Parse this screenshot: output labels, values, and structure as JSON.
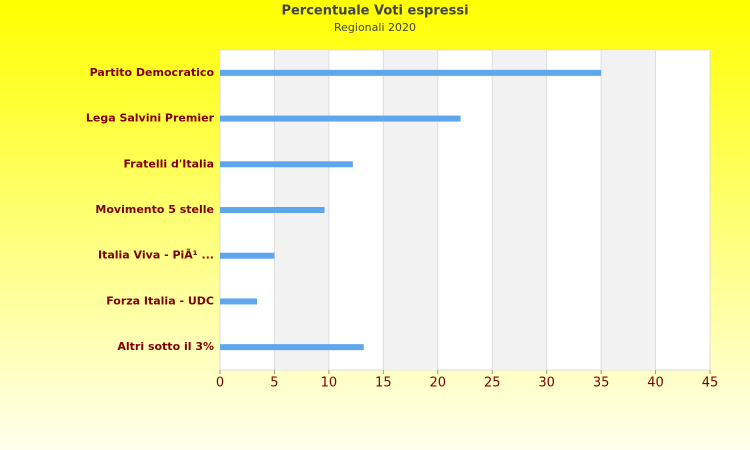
{
  "chart_data": {
    "type": "barh",
    "title": "Percentuale Voti espressi",
    "subtitle": "Regionali 2020",
    "categories": [
      "Partito Democratico",
      "Lega Salvini Premier",
      "Fratelli d'Italia",
      "Movimento 5 stelle",
      "Italia Viva - PiÃ¹ ...",
      "Forza Italia - UDC",
      "Altri sotto il 3%"
    ],
    "values": [
      35.0,
      22.1,
      12.2,
      9.6,
      5.0,
      3.4,
      13.2
    ],
    "color": "#5ea7ec",
    "xlim": [
      0,
      45
    ],
    "xticks": [
      0,
      5,
      10,
      15,
      20,
      25,
      30,
      35,
      40,
      45
    ],
    "grid": true
  }
}
